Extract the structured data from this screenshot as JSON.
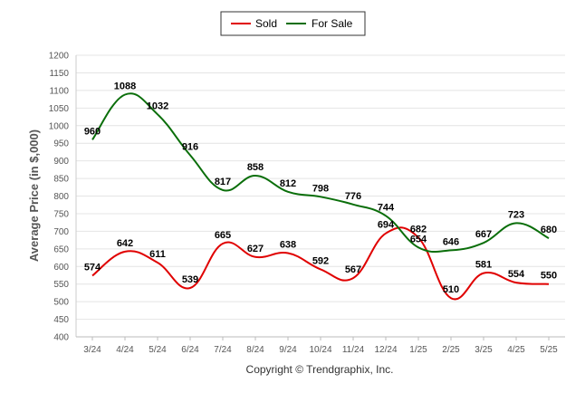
{
  "chart_data": {
    "type": "line",
    "categories": [
      "3/24",
      "4/24",
      "5/24",
      "6/24",
      "7/24",
      "8/24",
      "9/24",
      "10/24",
      "11/24",
      "12/24",
      "1/25",
      "2/25",
      "3/25",
      "4/25",
      "5/25"
    ],
    "series": [
      {
        "name": "Sold",
        "color": "#e00000",
        "values": [
          574,
          642,
          611,
          539,
          665,
          627,
          638,
          592,
          567,
          694,
          682,
          510,
          581,
          554,
          550
        ]
      },
      {
        "name": "For Sale",
        "color": "#0a6e0a",
        "values": [
          960,
          1088,
          1032,
          916,
          817,
          858,
          812,
          798,
          776,
          744,
          654,
          646,
          667,
          723,
          680
        ]
      }
    ],
    "ylabel": "Average Price (in $,000)",
    "ylim": [
      400,
      1200
    ],
    "yticks": [
      400,
      450,
      500,
      550,
      600,
      650,
      700,
      750,
      800,
      850,
      900,
      950,
      1000,
      1050,
      1100,
      1150,
      1200
    ],
    "grid": true,
    "legend_position": "top-center",
    "footer": "Copyright © Trendgraphix, Inc."
  }
}
